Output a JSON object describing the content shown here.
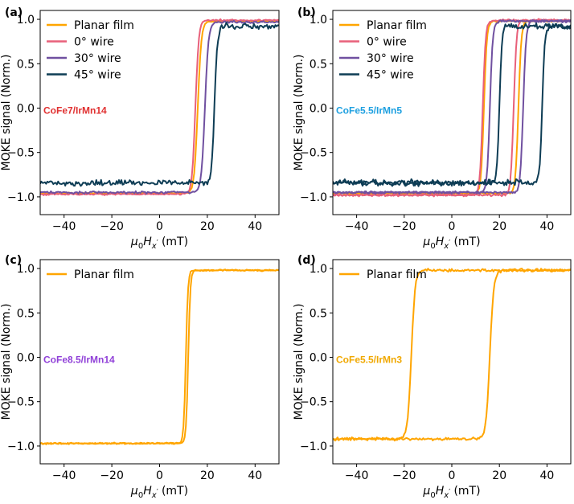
{
  "chart_data": [
    {
      "type": "line",
      "panel": "(a)",
      "xlabel": "μ0Hx′ (mT)",
      "xlabel_parts": {
        "mu": "μ",
        "zero": "0",
        "H": "H",
        "x": "x",
        "prime": "′",
        "unit": "(mT)"
      },
      "ylabel": "MOKE signal (Norm.)",
      "xlim": [
        -50,
        50
      ],
      "ylim": [
        -1.2,
        1.1
      ],
      "xticks": [
        -40,
        -20,
        0,
        20,
        40
      ],
      "yticks": [
        -1.0,
        -0.5,
        0.0,
        0.5,
        1.0
      ],
      "xtick_labels": [
        "−40",
        "−20",
        "0",
        "20",
        "40"
      ],
      "ytick_labels": [
        "−1.0",
        "−0.5",
        "0.0",
        "0.5",
        "1.0"
      ],
      "legend": "top-left",
      "annotation": {
        "text": "CoFe7/IrMn14",
        "color": "#e03030"
      },
      "series": [
        {
          "name": "Planar film",
          "color": "#ffa500",
          "loops": [
            {
              "center": 16,
              "low": -0.96,
              "high": 0.98,
              "halfwidth": 1.5,
              "noise": 0.01
            }
          ]
        },
        {
          "name": "0° wire",
          "color": "#e8607a",
          "loops": [
            {
              "center": 15,
              "low": -0.97,
              "high": 0.99,
              "halfwidth": 1.4,
              "noise": 0.012
            }
          ]
        },
        {
          "name": "30° wire",
          "color": "#7050a0",
          "loops": [
            {
              "center": 19,
              "low": -0.95,
              "high": 0.97,
              "halfwidth": 1.5,
              "noise": 0.015
            }
          ]
        },
        {
          "name": "45° wire",
          "color": "#0e3d55",
          "loops": [
            {
              "center": 23,
              "low": -0.84,
              "high": 0.92,
              "halfwidth": 1.2,
              "noise": 0.04
            }
          ]
        }
      ]
    },
    {
      "type": "line",
      "panel": "(b)",
      "xlabel": "μ0Hx′ (mT)",
      "ylabel": "MOKE signal (Norm.)",
      "xlim": [
        -50,
        50
      ],
      "ylim": [
        -1.2,
        1.1
      ],
      "xticks": [
        -40,
        -20,
        0,
        20,
        40
      ],
      "yticks": [
        -1.0,
        -0.5,
        0.0,
        0.5,
        1.0
      ],
      "xtick_labels": [
        "−40",
        "−20",
        "0",
        "20",
        "40"
      ],
      "ytick_labels": [
        "−1.0",
        "−0.5",
        "0.0",
        "0.5",
        "1.0"
      ],
      "legend": "top-left",
      "annotation": {
        "text": "CoFe5.5/IrMn5",
        "color": "#1ea0e0"
      },
      "series": [
        {
          "name": "Planar film",
          "color": "#ffa500",
          "loops": [
            {
              "center": 13.5,
              "low": -0.96,
              "high": 0.98,
              "halfwidth": 1.2,
              "noise": 0.01
            },
            {
              "center": 28,
              "low": -0.96,
              "high": 0.98,
              "halfwidth": 1.2,
              "noise": 0.01
            }
          ]
        },
        {
          "name": "0° wire",
          "color": "#e8607a",
          "loops": [
            {
              "center": 13,
              "low": -0.98,
              "high": 0.99,
              "halfwidth": 1.2,
              "noise": 0.015
            },
            {
              "center": 26,
              "low": -0.98,
              "high": 0.99,
              "halfwidth": 1.2,
              "noise": 0.015
            }
          ]
        },
        {
          "name": "30° wire",
          "color": "#7050a0",
          "loops": [
            {
              "center": 16,
              "low": -0.95,
              "high": 0.98,
              "halfwidth": 1.2,
              "noise": 0.015
            },
            {
              "center": 30,
              "low": -0.95,
              "high": 0.98,
              "halfwidth": 1.2,
              "noise": 0.015
            }
          ]
        },
        {
          "name": "45° wire",
          "color": "#0e3d55",
          "loops": [
            {
              "center": 20,
              "low": -0.84,
              "high": 0.92,
              "halfwidth": 1.0,
              "noise": 0.04
            },
            {
              "center": 38,
              "low": -0.84,
              "high": 0.92,
              "halfwidth": 1.0,
              "noise": 0.04
            }
          ]
        }
      ]
    },
    {
      "type": "line",
      "panel": "(c)",
      "xlabel": "μ0Hx′ (mT)",
      "ylabel": "MOKE signal (Norm.)",
      "xlim": [
        -50,
        50
      ],
      "ylim": [
        -1.2,
        1.1
      ],
      "xticks": [
        -40,
        -20,
        0,
        20,
        40
      ],
      "yticks": [
        -1.0,
        -0.5,
        0.0,
        0.5,
        1.0
      ],
      "xtick_labels": [
        "−40",
        "−20",
        "0",
        "20",
        "40"
      ],
      "ytick_labels": [
        "−1.0",
        "−0.5",
        "0.0",
        "0.5",
        "1.0"
      ],
      "legend": "top-left",
      "annotation": {
        "text": "CoFe8.5/IrMn14",
        "color": "#9040d8"
      },
      "series": [
        {
          "name": "Planar film",
          "color": "#ffa500",
          "loops": [
            {
              "center": 11,
              "low": -0.97,
              "high": 0.98,
              "halfwidth": 0.9,
              "noise": 0.01
            },
            {
              "center": 12,
              "low": -0.97,
              "high": 0.98,
              "halfwidth": 0.9,
              "noise": 0.01
            }
          ]
        }
      ]
    },
    {
      "type": "line",
      "panel": "(d)",
      "xlabel": "μ0Hx′ (mT)",
      "ylabel": "MOKE signal (Norm.)",
      "xlim": [
        -50,
        50
      ],
      "ylim": [
        -1.2,
        1.1
      ],
      "xticks": [
        -40,
        -20,
        0,
        20,
        40
      ],
      "yticks": [
        -1.0,
        -0.5,
        0.0,
        0.5,
        1.0
      ],
      "xtick_labels": [
        "−40",
        "−20",
        "0",
        "20",
        "40"
      ],
      "ytick_labels": [
        "−1.0",
        "−0.5",
        "0.0",
        "0.5",
        "1.0"
      ],
      "legend": "top-left",
      "annotation": {
        "text": "CoFe5.5/IrMn3",
        "color": "#f0a800"
      },
      "series": [
        {
          "name": "Planar film",
          "color": "#ffa500",
          "loops": [
            {
              "center": -17,
              "low": -0.92,
              "high": 0.98,
              "halfwidth": 1.6,
              "noise": 0.02
            },
            {
              "center": 16,
              "low": -0.92,
              "high": 0.98,
              "halfwidth": 1.6,
              "noise": 0.02
            }
          ]
        }
      ]
    }
  ]
}
